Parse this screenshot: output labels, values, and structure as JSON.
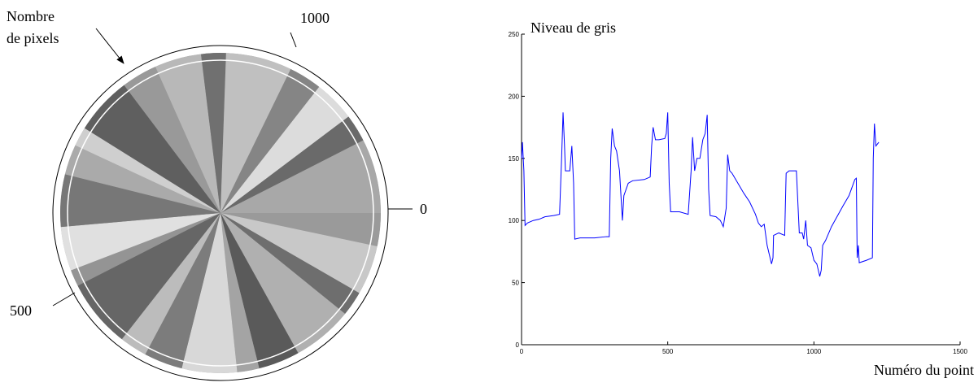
{
  "panorama": {
    "label_lines": [
      "Nombre",
      "de pixels"
    ],
    "ticks": [
      1000,
      0,
      500
    ]
  },
  "chart_data": {
    "type": "line",
    "ylabel": "Niveau de gris",
    "xlabel": "Numéro du point",
    "xlim": [
      0,
      1500
    ],
    "xticks": [
      0,
      500,
      1000,
      1500
    ],
    "ylim": [
      0,
      250
    ],
    "yticks": [
      0,
      50,
      100,
      150,
      200,
      250
    ],
    "series": [
      {
        "color": "#0000ff",
        "x": [
          0,
          3,
          8,
          12,
          20,
          40,
          60,
          80,
          110,
          130,
          137,
          142,
          147,
          150,
          165,
          172,
          178,
          182,
          200,
          250,
          290,
          300,
          305,
          310,
          318,
          325,
          335,
          345,
          350,
          365,
          380,
          420,
          440,
          445,
          450,
          458,
          470,
          490,
          495,
          500,
          505,
          510,
          540,
          570,
          580,
          585,
          592,
          600,
          610,
          620,
          628,
          635,
          640,
          645,
          665,
          680,
          690,
          700,
          705,
          712,
          720,
          740,
          760,
          780,
          800,
          810,
          820,
          830,
          840,
          855,
          860,
          862,
          880,
          900,
          905,
          915,
          940,
          950,
          960,
          965,
          972,
          978,
          990,
          1000,
          1010,
          1015,
          1020,
          1025,
          1030,
          1040,
          1060,
          1100,
          1120,
          1140,
          1145,
          1148,
          1152,
          1155,
          1180,
          1200,
          1203,
          1207,
          1212,
          1222
        ],
        "values": [
          150,
          163,
          140,
          96,
          98,
          100,
          101,
          103,
          104,
          105,
          150,
          187,
          160,
          140,
          140,
          160,
          130,
          85,
          86,
          86,
          87,
          87,
          150,
          174,
          160,
          156,
          140,
          100,
          120,
          130,
          132,
          133,
          135,
          160,
          175,
          165,
          165,
          166,
          170,
          187,
          130,
          107,
          107,
          105,
          140,
          167,
          140,
          150,
          150,
          165,
          170,
          185,
          125,
          104,
          103,
          100,
          95,
          110,
          153,
          140,
          138,
          130,
          122,
          115,
          105,
          98,
          95,
          97,
          80,
          65,
          70,
          88,
          90,
          88,
          138,
          140,
          140,
          90,
          90,
          85,
          100,
          80,
          78,
          68,
          65,
          60,
          55,
          60,
          80,
          84,
          95,
          112,
          120,
          133,
          134,
          70,
          80,
          66,
          68,
          70,
          150,
          178,
          160,
          163
        ]
      }
    ]
  }
}
